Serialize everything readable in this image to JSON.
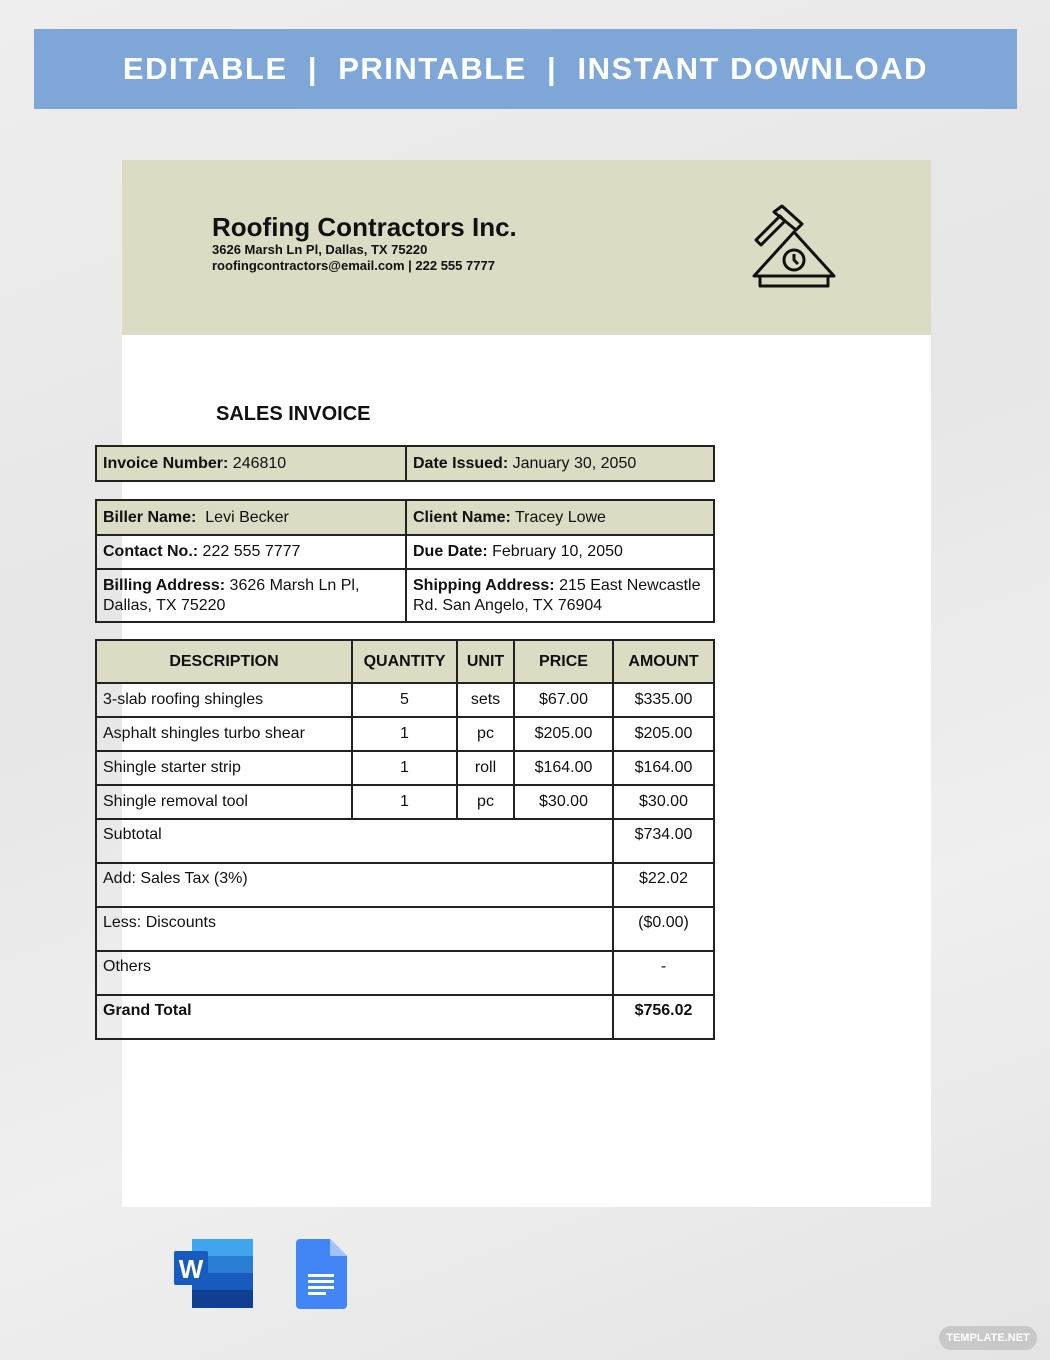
{
  "banner": {
    "text": "EDITABLE  |  PRINTABLE  |  INSTANT DOWNLOAD"
  },
  "company": {
    "name": "Roofing Contractors Inc.",
    "address": "3626 Marsh Ln Pl, Dallas, TX 75220",
    "contact": "roofingcontractors@email.com | 222 555 7777",
    "logo_icon": "roof-hammer-clock-icon"
  },
  "invoice": {
    "title": "SALES INVOICE",
    "number_label": "Invoice Number:",
    "number": " 246810",
    "date_label": "Date Issued:",
    "date": " January 30, 2050",
    "biller_label": "Biller Name:",
    "biller": "  Levi Becker",
    "client_label": "Client Name:",
    "client": " Tracey Lowe",
    "contact_label": "Contact No.:",
    "contact": " 222 555 7777",
    "due_label": "Due Date:",
    "due": " February 10, 2050",
    "billing_label": "Billing Address:",
    "billing": " 3626 Marsh Ln Pl, Dallas, TX 75220",
    "shipping_label": "Shipping Address:",
    "shipping": " 215 East Newcastle Rd. San Angelo, TX 76904"
  },
  "items": {
    "headers": [
      "DESCRIPTION",
      "QUANTITY",
      "UNIT",
      "PRICE",
      "AMOUNT"
    ],
    "rows": [
      [
        "3-slab roofing shingles",
        "5",
        "sets",
        "$67.00",
        "$335.00"
      ],
      [
        "Asphalt shingles turbo shear",
        "1",
        "pc",
        "$205.00",
        "$205.00"
      ],
      [
        "Shingle starter strip",
        "1",
        "roll",
        "$164.00",
        "$164.00"
      ],
      [
        "Shingle removal tool",
        "1",
        "pc",
        "$30.00",
        "$30.00"
      ]
    ],
    "summary": [
      [
        "Subtotal",
        "$734.00"
      ],
      [
        "Add: Sales Tax (3%)",
        "$22.02"
      ],
      [
        "Less: Discounts",
        "($0.00)"
      ],
      [
        "Others",
        "-"
      ],
      [
        "Grand Total",
        "$756.02"
      ]
    ]
  },
  "footer": {
    "icons": [
      "microsoft-word-icon",
      "google-docs-icon"
    ],
    "watermark": "TEMPLATE.NET"
  },
  "colors": {
    "banner": "#7ea7d8",
    "header": "#dcdbc4"
  }
}
